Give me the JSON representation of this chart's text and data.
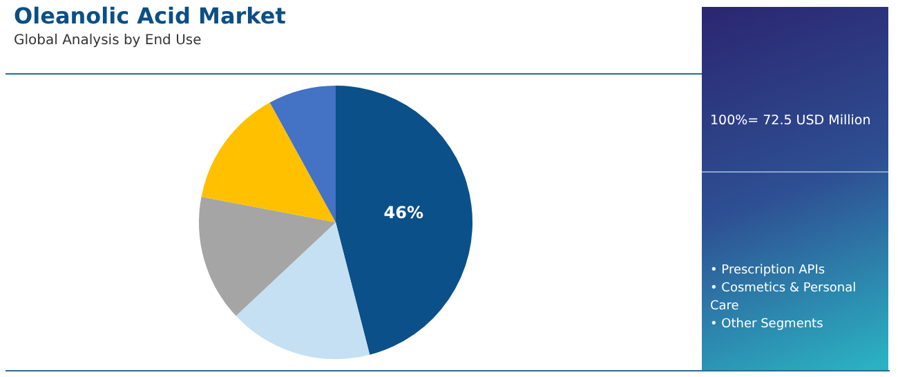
{
  "chart_data": {
    "type": "pie",
    "title": "Oleanolic Acid Market",
    "subtitle": "Global Analysis by End Use",
    "categories": [
      null,
      null,
      null,
      null,
      null
    ],
    "values": [
      46,
      17,
      15,
      14,
      8
    ],
    "colors": [
      "#0b5089",
      "#c5e0f2",
      "#a5a5a5",
      "#ffc000",
      "#4472c4"
    ],
    "value_labels": [
      "46%",
      null,
      null,
      null,
      null
    ],
    "annotations": [
      "100%= 72.5 USD Million",
      "• Prescription APIs",
      "• Cosmetics & Personal Care",
      "• Other Segments"
    ]
  }
}
